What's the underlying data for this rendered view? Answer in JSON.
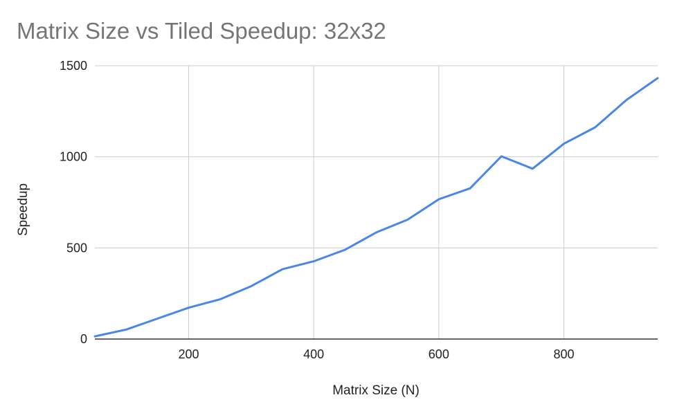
{
  "chart_data": {
    "type": "line",
    "title": "Matrix Size vs Tiled Speedup: 32x32",
    "xlabel": "Matrix Size (N)",
    "ylabel": "Speedup",
    "xlim": [
      50,
      950
    ],
    "ylim": [
      0,
      1500
    ],
    "x_ticks": [
      200,
      400,
      600,
      800
    ],
    "y_ticks": [
      0,
      500,
      1000,
      1500
    ],
    "grid": true,
    "legend": "none",
    "series": [
      {
        "color": "#4a86e8",
        "x": [
          50,
          100,
          150,
          200,
          250,
          300,
          350,
          400,
          450,
          500,
          550,
          600,
          650,
          700,
          750,
          800,
          850,
          900,
          950
        ],
        "y": [
          15,
          52,
          112,
          172,
          218,
          290,
          383,
          427,
          490,
          585,
          655,
          767,
          827,
          1003,
          935,
          1072,
          1162,
          1312,
          1432
        ]
      }
    ]
  }
}
